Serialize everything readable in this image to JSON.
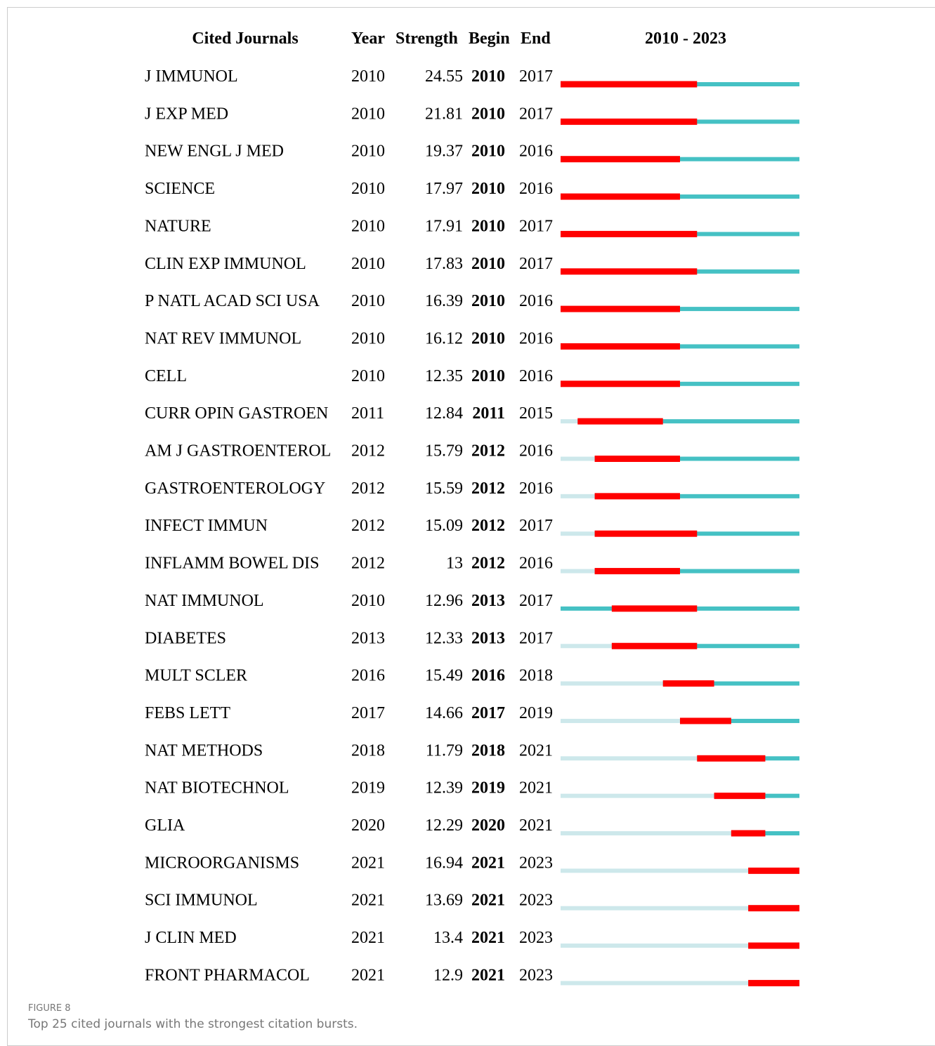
{
  "figure": {
    "headers": {
      "journal": "Cited Journals",
      "year": "Year",
      "strength": "Strength",
      "begin": "Begin",
      "end": "End"
    },
    "timeline": {
      "label": "2010 - 2023",
      "start": 2010,
      "end": 2023
    },
    "rows": [
      {
        "journal": "J IMMUNOL",
        "year": 2010,
        "strength": 24.55,
        "begin": 2010,
        "end": 2017
      },
      {
        "journal": "J EXP MED",
        "year": 2010,
        "strength": 21.81,
        "begin": 2010,
        "end": 2017
      },
      {
        "journal": "NEW ENGL J MED",
        "year": 2010,
        "strength": 19.37,
        "begin": 2010,
        "end": 2016
      },
      {
        "journal": "SCIENCE",
        "year": 2010,
        "strength": 17.97,
        "begin": 2010,
        "end": 2016
      },
      {
        "journal": "NATURE",
        "year": 2010,
        "strength": 17.91,
        "begin": 2010,
        "end": 2017
      },
      {
        "journal": "CLIN EXP IMMUNOL",
        "year": 2010,
        "strength": 17.83,
        "begin": 2010,
        "end": 2017
      },
      {
        "journal": "P NATL ACAD SCI USA",
        "year": 2010,
        "strength": 16.39,
        "begin": 2010,
        "end": 2016
      },
      {
        "journal": "NAT REV IMMUNOL",
        "year": 2010,
        "strength": 16.12,
        "begin": 2010,
        "end": 2016
      },
      {
        "journal": "CELL",
        "year": 2010,
        "strength": 12.35,
        "begin": 2010,
        "end": 2016
      },
      {
        "journal": "CURR OPIN GASTROEN",
        "year": 2011,
        "strength": 12.84,
        "begin": 2011,
        "end": 2015
      },
      {
        "journal": "AM J GASTROENTEROL",
        "year": 2012,
        "strength": 15.79,
        "begin": 2012,
        "end": 2016
      },
      {
        "journal": "GASTROENTEROLOGY",
        "year": 2012,
        "strength": 15.59,
        "begin": 2012,
        "end": 2016
      },
      {
        "journal": "INFECT IMMUN",
        "year": 2012,
        "strength": 15.09,
        "begin": 2012,
        "end": 2017
      },
      {
        "journal": "INFLAMM BOWEL DIS",
        "year": 2012,
        "strength": 13,
        "begin": 2012,
        "end": 2016
      },
      {
        "journal": "NAT IMMUNOL",
        "year": 2010,
        "strength": 12.96,
        "begin": 2013,
        "end": 2017
      },
      {
        "journal": "DIABETES",
        "year": 2013,
        "strength": 12.33,
        "begin": 2013,
        "end": 2017
      },
      {
        "journal": "MULT SCLER",
        "year": 2016,
        "strength": 15.49,
        "begin": 2016,
        "end": 2018
      },
      {
        "journal": "FEBS LETT",
        "year": 2017,
        "strength": 14.66,
        "begin": 2017,
        "end": 2019
      },
      {
        "journal": "NAT METHODS",
        "year": 2018,
        "strength": 11.79,
        "begin": 2018,
        "end": 2021
      },
      {
        "journal": "NAT BIOTECHNOL",
        "year": 2019,
        "strength": 12.39,
        "begin": 2019,
        "end": 2021
      },
      {
        "journal": "GLIA",
        "year": 2020,
        "strength": 12.29,
        "begin": 2020,
        "end": 2021
      },
      {
        "journal": "MICROORGANISMS",
        "year": 2021,
        "strength": 16.94,
        "begin": 2021,
        "end": 2023
      },
      {
        "journal": "SCI IMMUNOL",
        "year": 2021,
        "strength": 13.69,
        "begin": 2021,
        "end": 2023
      },
      {
        "journal": "J CLIN MED",
        "year": 2021,
        "strength": 13.4,
        "begin": 2021,
        "end": 2023
      },
      {
        "journal": "FRONT PHARMACOL",
        "year": 2021,
        "strength": 12.9,
        "begin": 2021,
        "end": 2023
      }
    ]
  },
  "caption": {
    "label": "FIGURE 8",
    "text": "Top 25 cited journals with the strongest citation bursts."
  }
}
